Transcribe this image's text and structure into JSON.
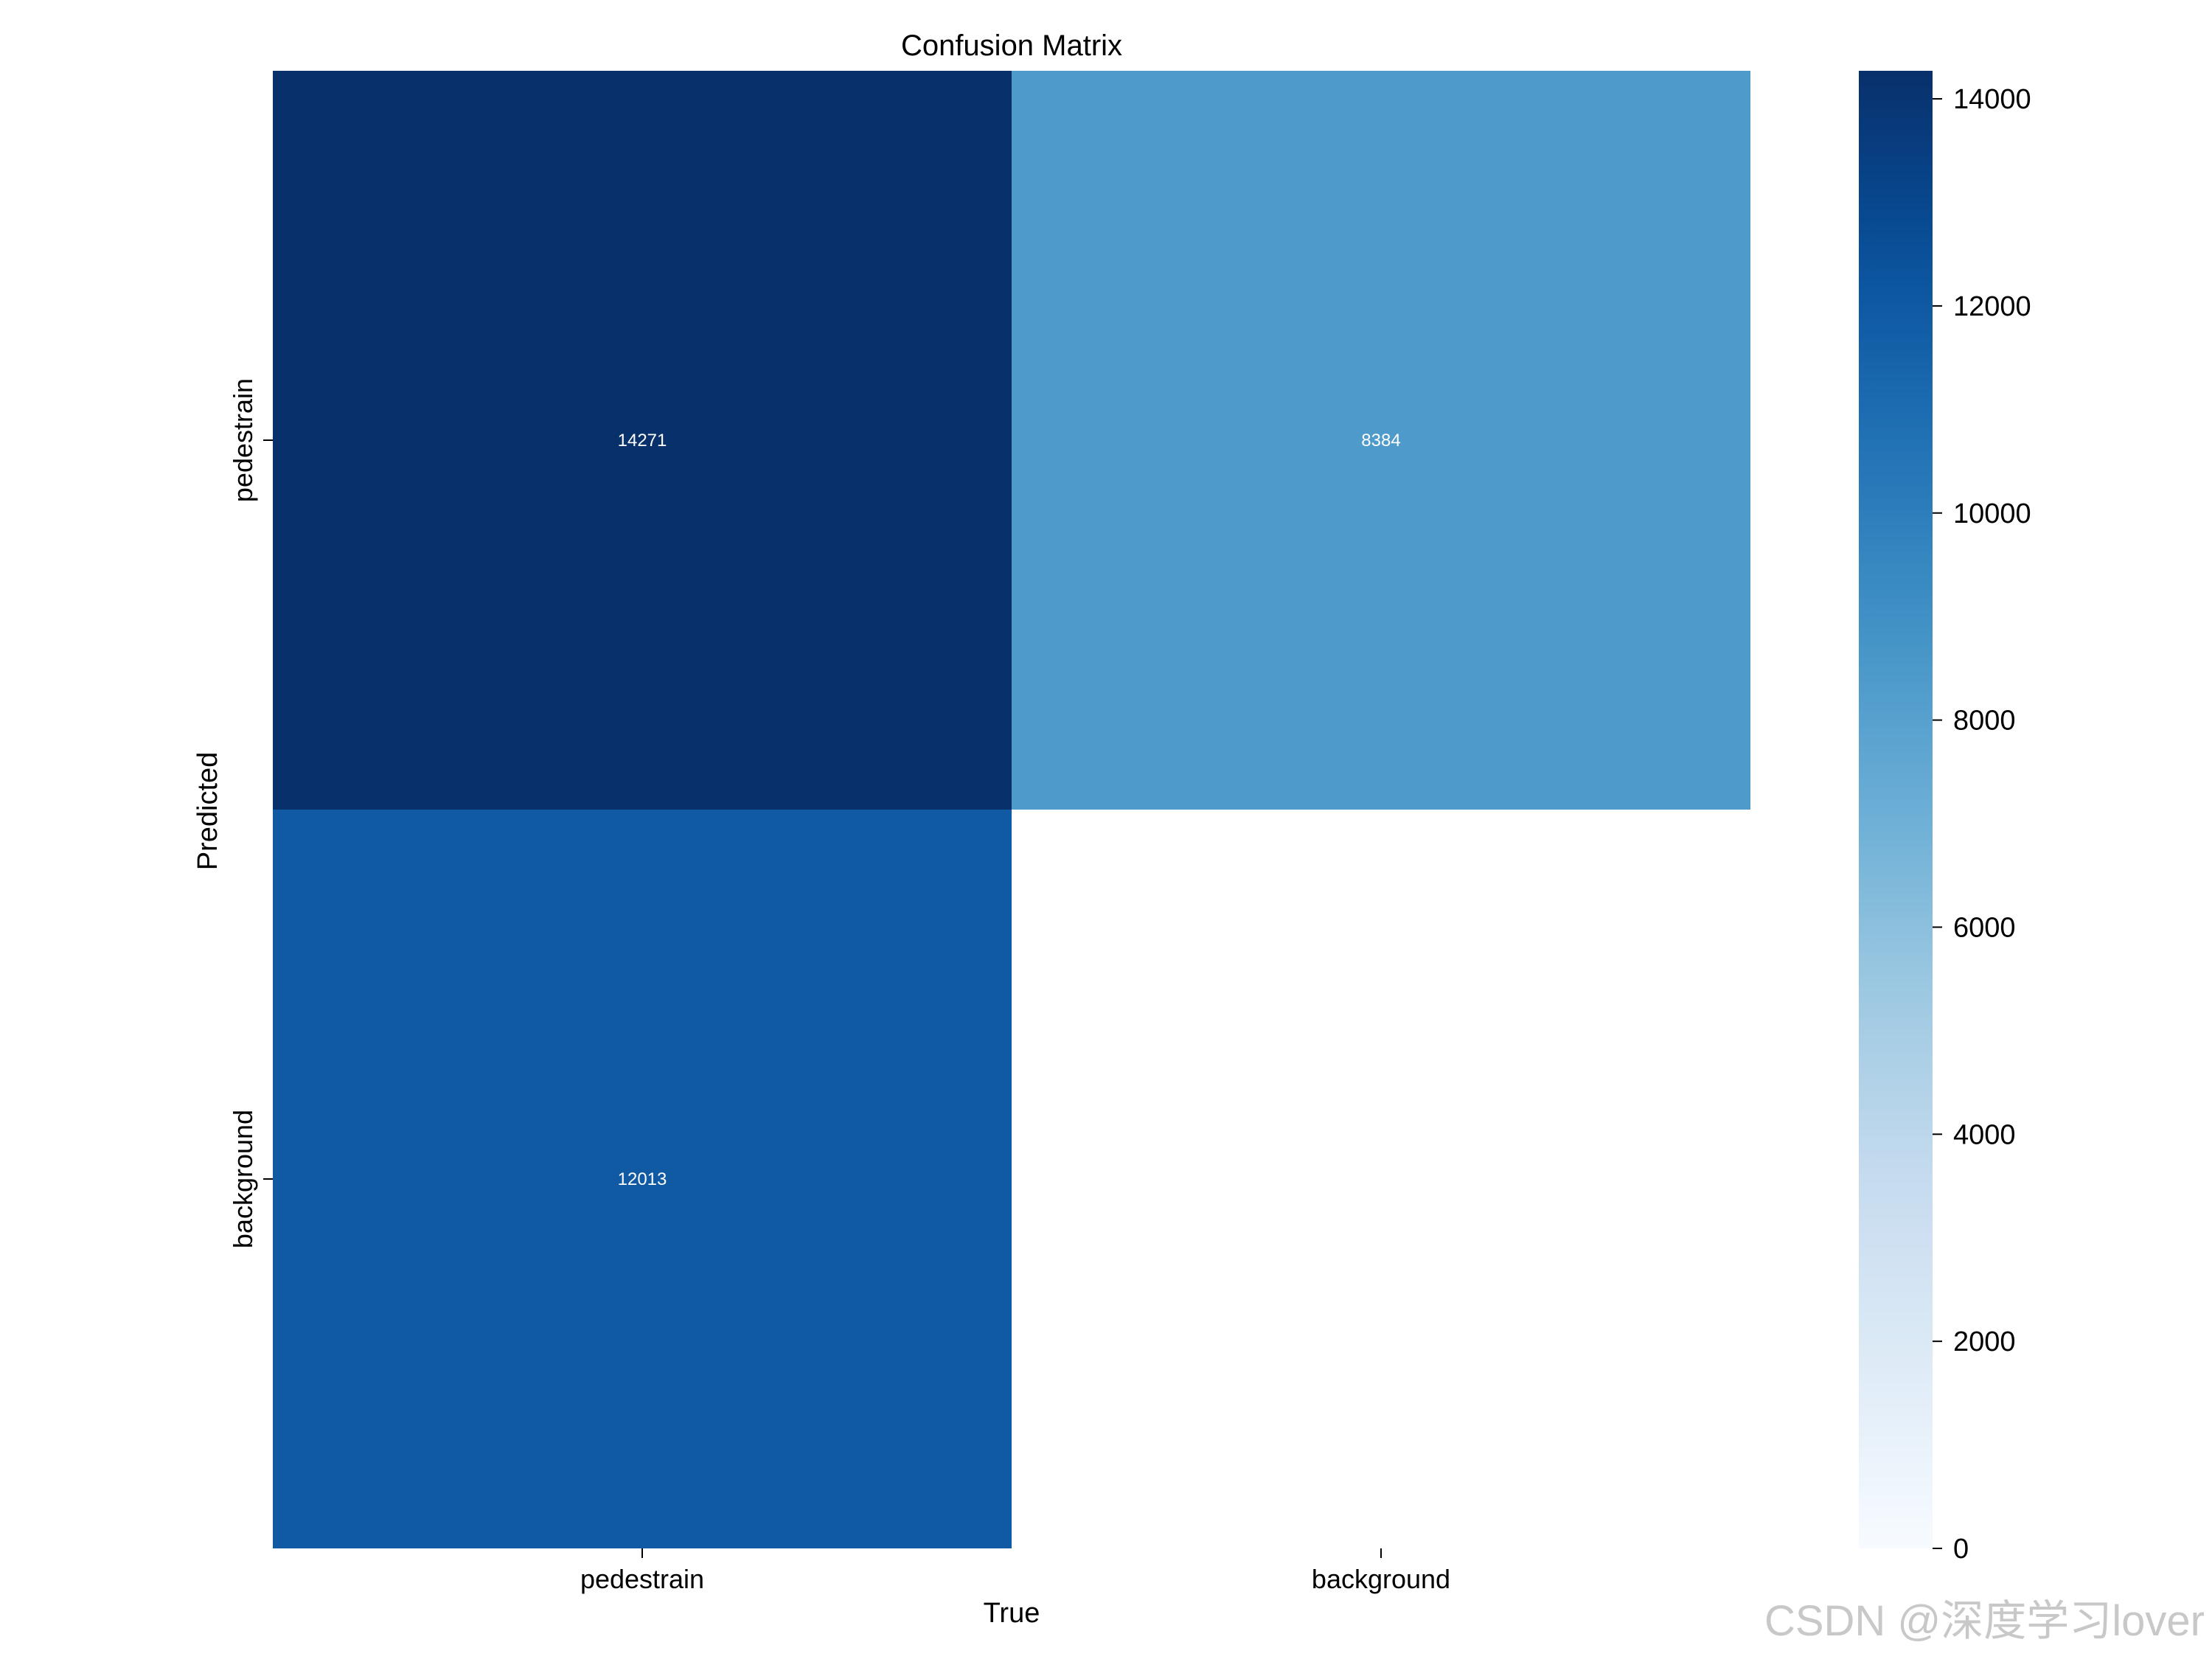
{
  "chart_data": {
    "type": "heatmap",
    "title": "Confusion Matrix",
    "xlabel": "True",
    "ylabel": "Predicted",
    "x_categories": [
      "pedestrain",
      "background"
    ],
    "y_categories": [
      "pedestrain",
      "background"
    ],
    "values": [
      [
        14271,
        8384
      ],
      [
        12013,
        null
      ]
    ],
    "cell_labels": [
      [
        "14271",
        "8384"
      ],
      [
        "12013",
        ""
      ]
    ],
    "colormap": "Blues",
    "colorbar": {
      "range": [
        0,
        14271
      ],
      "ticks": [
        0,
        2000,
        4000,
        6000,
        8000,
        10000,
        12000,
        14000
      ],
      "tick_labels": [
        "0",
        "2000",
        "4000",
        "6000",
        "8000",
        "10000",
        "12000",
        "14000"
      ]
    },
    "grid": false,
    "legend": "colorbar-right"
  },
  "watermark": "CSDN @深度学习lover"
}
